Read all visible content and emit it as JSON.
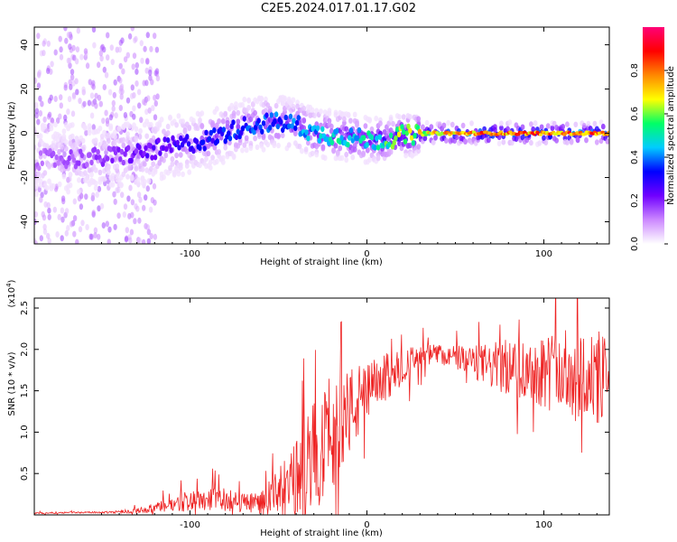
{
  "title": "C2E5.2024.017.01.17.G02",
  "chart_data": [
    {
      "type": "heatmap",
      "xlabel": "Height of straight line (km)",
      "ylabel": "Frequency (Hz)",
      "xlim": [
        -188,
        137
      ],
      "ylim": [
        -50,
        48
      ],
      "xticks": [
        -100,
        0,
        100
      ],
      "yticks": [
        40,
        20,
        0,
        -20,
        -40
      ],
      "grid": false,
      "colorbar": {
        "label": "Normalized spectral amplitude",
        "range": [
          0,
          1
        ],
        "ticks": [
          0.0,
          0.2,
          0.4,
          0.6,
          0.8
        ],
        "colors": [
          "#ffffff",
          "#cc88ff",
          "#7000ff",
          "#0000ff",
          "#00ccff",
          "#00ff66",
          "#ffff00",
          "#ff8800",
          "#ff0000",
          "#ff0077"
        ]
      },
      "ridge": {
        "x": [
          -188,
          -150,
          -130,
          -110,
          -90,
          -70,
          -55,
          -40,
          -30,
          -15,
          0,
          10,
          20,
          35,
          60,
          100,
          137
        ],
        "f": [
          -12,
          -11,
          -9,
          -6,
          -3,
          3,
          5,
          4,
          0,
          -1,
          -3,
          -3,
          -1,
          0,
          0,
          0,
          0
        ],
        "amp": [
          0.15,
          0.2,
          0.25,
          0.3,
          0.35,
          0.4,
          0.42,
          0.45,
          0.5,
          0.55,
          0.55,
          0.6,
          0.7,
          0.8,
          0.9,
          0.92,
          0.9
        ]
      }
    },
    {
      "type": "line",
      "xlabel": "Height of straight line (km)",
      "ylabel": "SNR (10 * v/v)",
      "y_scale_note": "(x10",
      "y_scale_exp": "4",
      "y_scale_close": ")",
      "xlim": [
        -188,
        137
      ],
      "ylim": [
        0,
        2.62
      ],
      "xticks": [
        -100,
        0,
        100
      ],
      "yticks": [
        0.5,
        1.0,
        1.5,
        2.0,
        2.5
      ],
      "grid": false,
      "series": [
        {
          "color": "#ee2222",
          "x": [
            -188,
            -170,
            -150,
            -130,
            -120,
            -110,
            -100,
            -90,
            -80,
            -70,
            -60,
            -50,
            -40,
            -30,
            -20,
            -10,
            0,
            10,
            20,
            30,
            40,
            50,
            60,
            70,
            80,
            90,
            100,
            110,
            120,
            130,
            137
          ],
          "y": [
            0.02,
            0.03,
            0.03,
            0.05,
            0.08,
            0.12,
            0.18,
            0.2,
            0.18,
            0.15,
            0.15,
            0.25,
            0.4,
            0.7,
            1.0,
            1.25,
            1.45,
            1.65,
            1.8,
            1.9,
            1.95,
            1.9,
            1.85,
            1.8,
            1.78,
            1.75,
            1.75,
            1.7,
            1.7,
            1.65,
            1.6
          ],
          "band": [
            0.01,
            0.01,
            0.01,
            0.03,
            0.06,
            0.1,
            0.14,
            0.15,
            0.14,
            0.12,
            0.14,
            0.3,
            0.5,
            0.7,
            0.7,
            0.55,
            0.4,
            0.3,
            0.22,
            0.15,
            0.12,
            0.15,
            0.2,
            0.28,
            0.35,
            0.4,
            0.45,
            0.55,
            0.6,
            0.6,
            0.55
          ]
        }
      ]
    }
  ]
}
